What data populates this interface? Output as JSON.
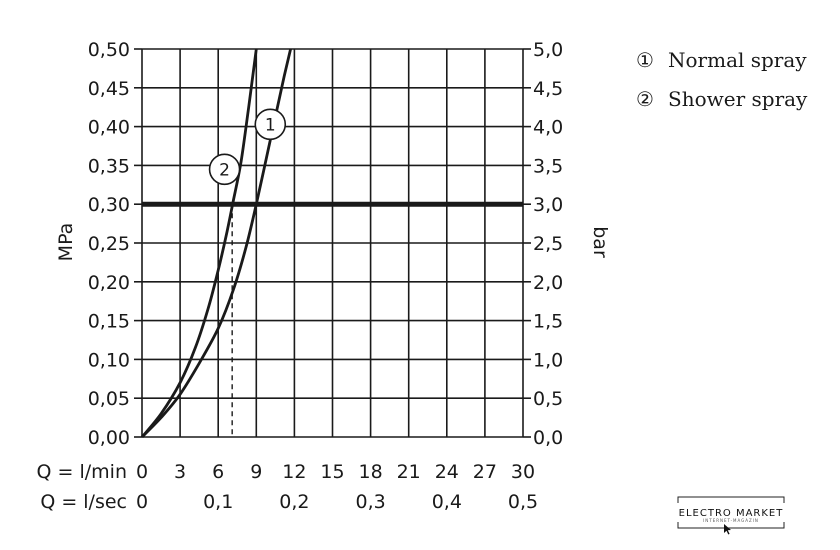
{
  "chart_data": {
    "type": "line",
    "title": "",
    "xlabel": "",
    "ylabel": "MPa",
    "y2label": "bar",
    "xlim": [
      0,
      30
    ],
    "ylim": [
      0,
      0.5
    ],
    "y2lim": [
      0,
      5
    ],
    "grid": true,
    "legend_position": "top-right",
    "x_row_label": "Q = l/min",
    "x_ticks": [
      "0",
      "3",
      "6",
      "9",
      "12",
      "15",
      "18",
      "21",
      "24",
      "27",
      "30"
    ],
    "x2_row_label": "Q = l/sec",
    "x2_ticks": [
      "0",
      "0,1",
      "0,2",
      "0,3",
      "0,4",
      "0,5"
    ],
    "y_ticks": [
      "0,00",
      "0,05",
      "0,10",
      "0,15",
      "0,20",
      "0,25",
      "0,30",
      "0,35",
      "0,40",
      "0,45",
      "0,50"
    ],
    "y2_ticks": [
      "0,0",
      "0,5",
      "1,0",
      "1,5",
      "2,0",
      "2,5",
      "3,0",
      "3,5",
      "4,0",
      "4,5",
      "5,0"
    ],
    "series": [
      {
        "name": "Normal spray",
        "marker": "①",
        "marker_label": "1",
        "x": [
          0,
          1.5,
          3,
          4.5,
          6,
          7.2,
          8.2,
          9,
          9.8,
          10.6,
          11.2,
          11.7
        ],
        "y": [
          0,
          0.025,
          0.055,
          0.095,
          0.14,
          0.19,
          0.245,
          0.3,
          0.36,
          0.42,
          0.465,
          0.5
        ]
      },
      {
        "name": "Shower spray",
        "marker": "②",
        "marker_label": "2",
        "x": [
          0,
          1.5,
          3,
          4.2,
          5.2,
          6,
          6.7,
          7.2,
          7.8,
          8.4,
          9
        ],
        "y": [
          0,
          0.03,
          0.07,
          0.115,
          0.165,
          0.215,
          0.265,
          0.305,
          0.355,
          0.425,
          0.5
        ]
      }
    ],
    "reference_line": {
      "y": 0.3
    },
    "operating_points": [
      {
        "series": "Shower spray",
        "x": 7.1,
        "y": 0.3
      },
      {
        "series": "Normal spray",
        "x": 9.0,
        "y": 0.3
      }
    ]
  },
  "logo": {
    "text": "ELECTRO MARKET",
    "subtext": "INTERNET-MAGAZIN"
  },
  "colors": {
    "line": "#1a1a1a",
    "grid": "#1a1a1a",
    "background": "#ffffff"
  }
}
